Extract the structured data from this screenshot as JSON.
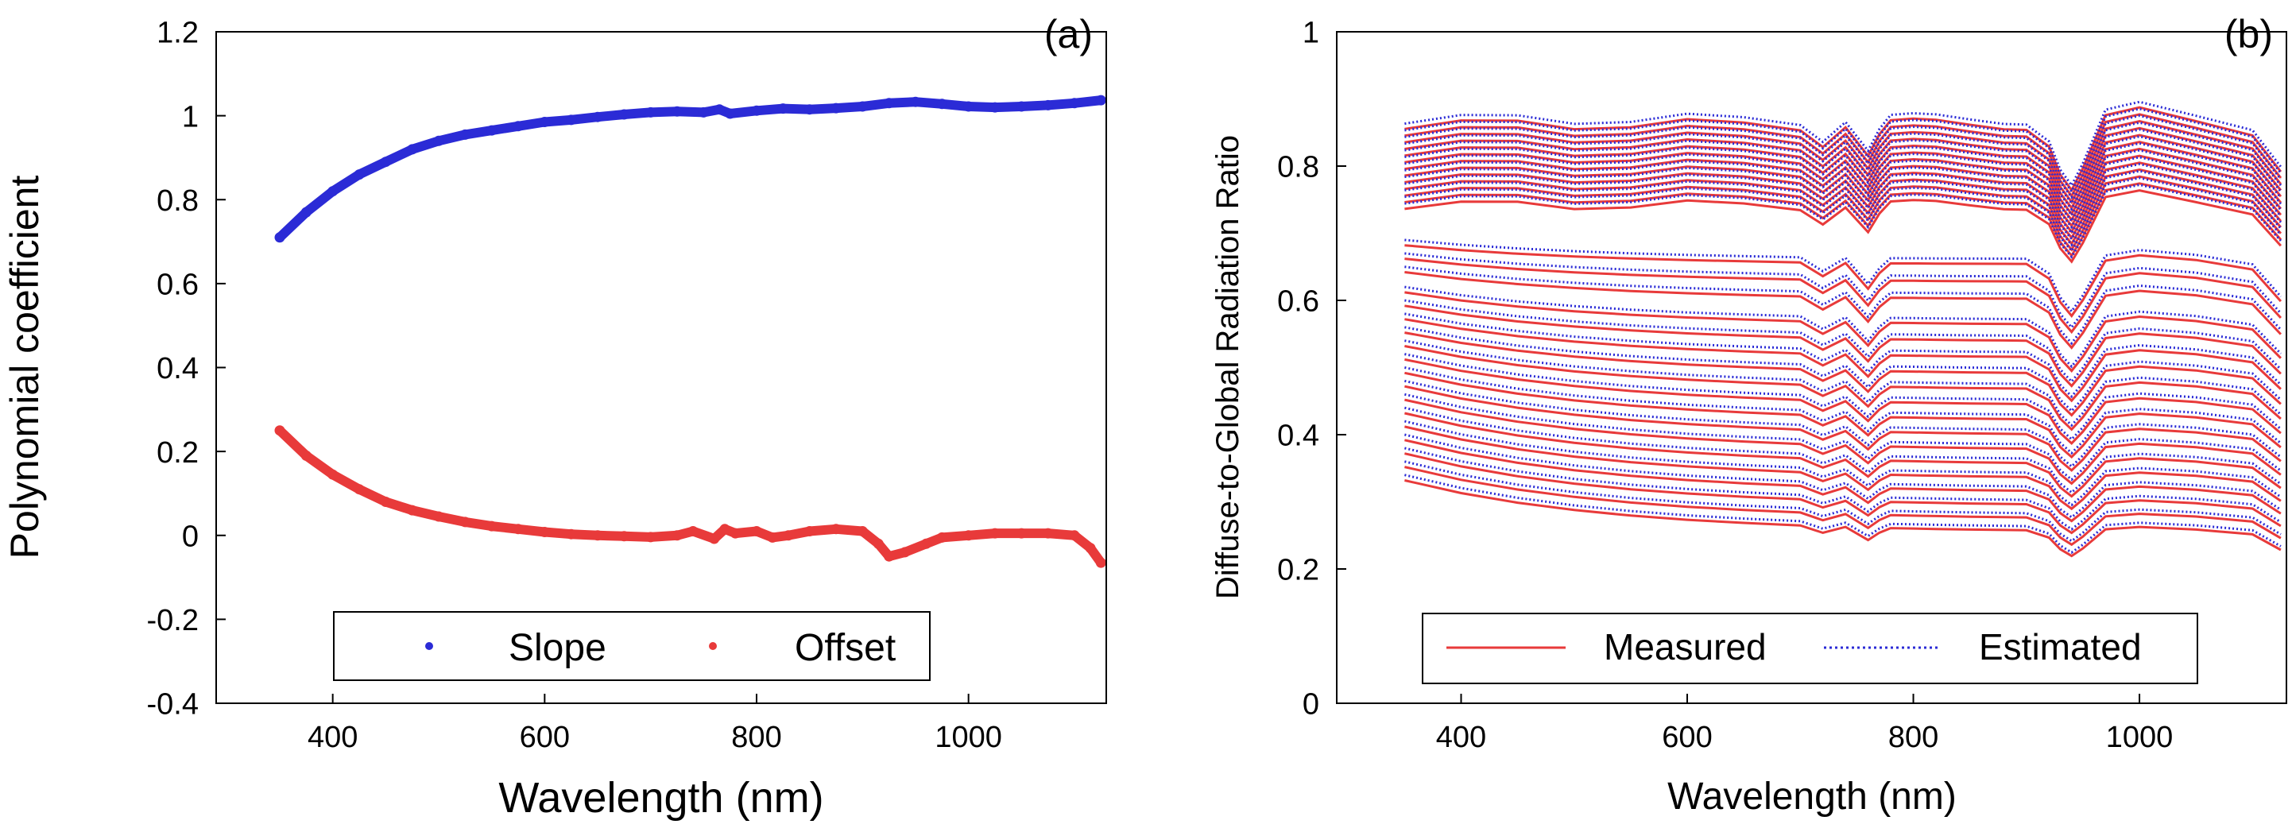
{
  "chart_data": [
    {
      "type": "scatter",
      "panel_label": "(a)",
      "xlabel": "Wavelength (nm)",
      "ylabel": "Polynomial coefficient",
      "xlim": [
        290,
        1130
      ],
      "ylim": [
        -0.4,
        1.2
      ],
      "xticks": [
        400,
        600,
        800,
        1000
      ],
      "yticks": [
        -0.4,
        -0.2,
        0,
        0.2,
        0.4,
        0.6,
        0.8,
        1,
        1.2
      ],
      "xtick_labels": [
        "400",
        "600",
        "800",
        "1000"
      ],
      "ytick_labels": [
        "-0.4",
        "-0.2",
        "0",
        "0.2",
        "0.4",
        "0.6",
        "0.8",
        "1",
        "1.2"
      ],
      "grid": false,
      "legend_position": "bottom-center",
      "series": [
        {
          "name": "Slope",
          "color": "#2b2bd6",
          "x": [
            350,
            375,
            400,
            425,
            450,
            475,
            500,
            525,
            550,
            575,
            600,
            625,
            650,
            675,
            700,
            725,
            750,
            765,
            775,
            800,
            825,
            850,
            875,
            900,
            925,
            950,
            975,
            1000,
            1025,
            1050,
            1075,
            1100,
            1125
          ],
          "y": [
            0.71,
            0.77,
            0.82,
            0.86,
            0.89,
            0.92,
            0.94,
            0.955,
            0.965,
            0.975,
            0.985,
            0.99,
            0.997,
            1.003,
            1.008,
            1.01,
            1.008,
            1.015,
            1.005,
            1.012,
            1.017,
            1.015,
            1.018,
            1.022,
            1.03,
            1.033,
            1.028,
            1.022,
            1.02,
            1.022,
            1.025,
            1.03,
            1.037
          ]
        },
        {
          "name": "Offset",
          "color": "#e83a3a",
          "x": [
            350,
            375,
            400,
            425,
            450,
            475,
            500,
            525,
            550,
            575,
            600,
            625,
            650,
            675,
            700,
            725,
            740,
            760,
            770,
            780,
            800,
            815,
            830,
            850,
            875,
            900,
            915,
            925,
            940,
            960,
            975,
            1000,
            1025,
            1050,
            1075,
            1100,
            1115,
            1125
          ],
          "y": [
            0.25,
            0.19,
            0.145,
            0.11,
            0.08,
            0.06,
            0.045,
            0.032,
            0.022,
            0.015,
            0.008,
            0.003,
            0.0,
            -0.002,
            -0.004,
            0.0,
            0.01,
            -0.008,
            0.015,
            0.005,
            0.01,
            -0.005,
            0.0,
            0.01,
            0.015,
            0.01,
            -0.02,
            -0.05,
            -0.04,
            -0.02,
            -0.005,
            0.0,
            0.005,
            0.005,
            0.005,
            0.0,
            -0.03,
            -0.065
          ]
        }
      ]
    },
    {
      "type": "line",
      "panel_label": "(b)",
      "xlabel": "Wavelength (nm)",
      "ylabel": "Diffuse-to-Global Radiation Ratio",
      "xlim": [
        290,
        1130
      ],
      "ylim": [
        0,
        1
      ],
      "xticks": [
        400,
        600,
        800,
        1000
      ],
      "yticks": [
        0,
        0.2,
        0.4,
        0.6,
        0.8,
        1
      ],
      "xtick_labels": [
        "400",
        "600",
        "800",
        "1000"
      ],
      "ytick_labels": [
        "0",
        "0.2",
        "0.4",
        "0.6",
        "0.8",
        "1"
      ],
      "grid": false,
      "legend_position": "bottom-center",
      "legend": [
        {
          "name": "Measured",
          "color": "#e83a3a",
          "style": "solid"
        },
        {
          "name": "Estimated",
          "color": "#2b2bd6",
          "style": "dotted"
        }
      ],
      "wavelength": [
        350,
        400,
        450,
        500,
        550,
        600,
        650,
        700,
        720,
        740,
        760,
        770,
        780,
        800,
        820,
        850,
        880,
        900,
        920,
        930,
        940,
        950,
        970,
        1000,
        1050,
        1100,
        1125
      ],
      "start_ratios": [
        0.87,
        0.86,
        0.85,
        0.84,
        0.83,
        0.82,
        0.81,
        0.8,
        0.79,
        0.78,
        0.77,
        0.76,
        0.75,
        0.69,
        0.67,
        0.65,
        0.62,
        0.6,
        0.58,
        0.56,
        0.54,
        0.52,
        0.5,
        0.48,
        0.46,
        0.44,
        0.42,
        0.4,
        0.38,
        0.36,
        0.34
      ]
    }
  ]
}
